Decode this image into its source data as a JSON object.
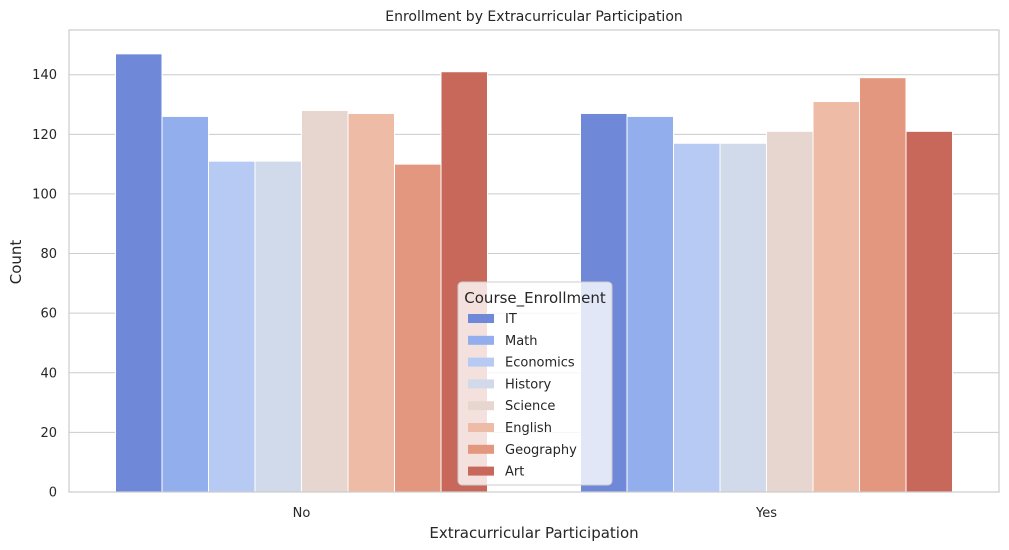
{
  "chart_data": {
    "type": "bar",
    "title": "Enrollment by Extracurricular Participation",
    "xlabel": "Extracurricular Participation",
    "ylabel": "Count",
    "categories": [
      "No",
      "Yes"
    ],
    "ylim": [
      0,
      155
    ],
    "yticks": [
      0,
      20,
      40,
      60,
      80,
      100,
      120,
      140
    ],
    "grid": true,
    "legend": {
      "title": "Course_Enrollment",
      "placement": "bottom-center"
    },
    "series": [
      {
        "name": "IT",
        "color": "#6f88d8",
        "values": [
          147,
          127
        ]
      },
      {
        "name": "Math",
        "color": "#93aeec",
        "values": [
          126,
          126
        ]
      },
      {
        "name": "Economics",
        "color": "#b6caf4",
        "values": [
          111,
          117
        ]
      },
      {
        "name": "History",
        "color": "#d0daea",
        "values": [
          111,
          117
        ]
      },
      {
        "name": "Science",
        "color": "#e7d6cf",
        "values": [
          128,
          121
        ]
      },
      {
        "name": "English",
        "color": "#eebca6",
        "values": [
          127,
          131
        ]
      },
      {
        "name": "Geography",
        "color": "#e2977e",
        "values": [
          110,
          139
        ]
      },
      {
        "name": "Art",
        "color": "#c8685b",
        "values": [
          141,
          121
        ]
      }
    ]
  }
}
